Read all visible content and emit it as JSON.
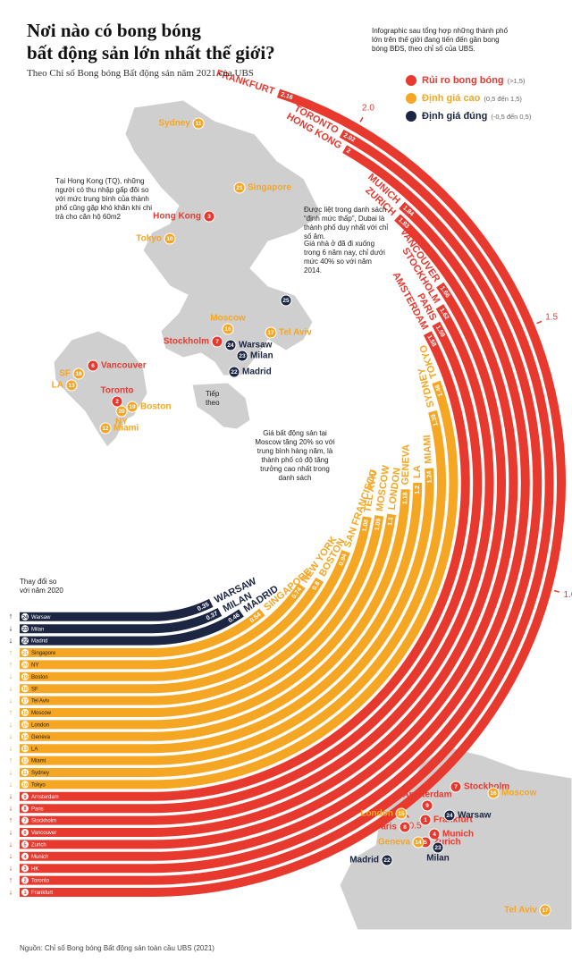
{
  "header": {
    "title": [
      "Nơi nào có bong bóng",
      "bất động sản lớn nhất thế giới?"
    ],
    "subtitle": "Theo Chỉ số Bong bóng Bất động sản năm 2021 của UBS",
    "intro": "Infographic sau tổng hợp những thành phố lớn trên thế giới đang tiến đến gần bong bóng BĐS, theo chỉ số của UBS."
  },
  "chart_data": {
    "type": "radial_bar",
    "legend": [
      {
        "name": "Rủi ro bong bóng",
        "range": "(>1,5)",
        "color": "#e8392f"
      },
      {
        "name": "Định giá cao",
        "range": "(0,5 đến 1,5)",
        "color": "#f5a623"
      },
      {
        "name": "Định giá đúng",
        "range": "(-0,5 đến 0,5)",
        "color": "#1c2541"
      }
    ],
    "categories": [
      "FRANKFURT",
      "TORONTO",
      "HONG KONG",
      "MUNICH",
      "ZURICH",
      "VANCOUVER",
      "STOCKHOLM",
      "PARIS",
      "AMSTERDAM",
      "TOKYO",
      "SYDNEY",
      "MIAMI",
      "LA",
      "GENEVA",
      "LONDON",
      "MOSCOW",
      "TEL AVIV",
      "SAN FRANCISCO",
      "BOSTON",
      "NEW YORK",
      "SINGAPORE",
      "MADRID",
      "MILAN",
      "WARSAW"
    ],
    "values": [
      2.16,
      2.02,
      2.0,
      1.84,
      1.83,
      1.66,
      1.62,
      1.59,
      1.58,
      1.46,
      1.39,
      1.24,
      1.2,
      1.18,
      1.1,
      1.09,
      1.08,
      0.94,
      0.8,
      0.74,
      0.54,
      0.46,
      0.37,
      0.35
    ],
    "groups": [
      0,
      0,
      0,
      0,
      0,
      0,
      0,
      0,
      0,
      1,
      1,
      1,
      1,
      1,
      1,
      1,
      1,
      1,
      1,
      1,
      1,
      2,
      2,
      2
    ],
    "ranks": [
      1,
      2,
      3,
      4,
      5,
      6,
      7,
      8,
      9,
      10,
      11,
      12,
      13,
      14,
      15,
      16,
      17,
      18,
      19,
      20,
      21,
      22,
      23,
      24
    ],
    "list_names": [
      "Frankfurt",
      "Toronto",
      "HK",
      "Munich",
      "Zurich",
      "Vancouver",
      "Stockholm",
      "Paris",
      "Amsterdam",
      "Tokyo",
      "Sydney",
      "Miami",
      "LA",
      "Geneva",
      "London",
      "Moscow",
      "Tel Aviv",
      "SF",
      "Boston",
      "NY",
      "Singapore",
      "Madrid",
      "Milan",
      "Warsaw"
    ],
    "trend": [
      "↓",
      "↑",
      "↓",
      "↓",
      "↓",
      "↓",
      "↑",
      "↓",
      "↓",
      "↓",
      "↓",
      "↑",
      "↓",
      "↓",
      "↓",
      "↑",
      "↓",
      "↓",
      "↓",
      "↑",
      "↑",
      "↓",
      "↓",
      "↑"
    ],
    "list_header": "Thay đổi so với năm 2020",
    "ylim": [
      0,
      2.4
    ],
    "yticks": [
      0.5,
      {
        "value": 1,
        "label": "1.0"
      },
      1.5,
      {
        "value": 2,
        "label": "2.0"
      }
    ]
  },
  "world_map": {
    "markers": [
      {
        "rank": "11",
        "label": "Sydney",
        "group": 1
      },
      {
        "rank": "21",
        "label": "Singapore",
        "group": 1
      },
      {
        "rank": "3",
        "label": "Hong Kong",
        "group": 0
      },
      {
        "rank": "10",
        "label": "Tokyo",
        "group": 1
      },
      {
        "rank": "16",
        "label": "Moscow",
        "group": 1
      },
      {
        "rank": "17",
        "label": "Tel Aviv",
        "group": 1
      },
      {
        "rank": "7",
        "label": "Stockholm",
        "group": 0
      },
      {
        "rank": "24",
        "label": "Warsaw",
        "group": 2
      },
      {
        "rank": "23",
        "label": "Milan",
        "group": 2
      },
      {
        "rank": "22",
        "label": "Madrid",
        "group": 2
      },
      {
        "rank": "25",
        "label": "",
        "group": 2
      },
      {
        "rank": "6",
        "label": "Vancouver",
        "group": 0
      },
      {
        "rank": "18",
        "label": "SF",
        "group": 1
      },
      {
        "rank": "13",
        "label": "LA",
        "group": 1
      },
      {
        "rank": "2",
        "label": "Toronto",
        "group": 0
      },
      {
        "rank": "20",
        "label": "NY",
        "group": 1
      },
      {
        "rank": "19",
        "label": "Boston",
        "group": 1
      },
      {
        "rank": "12",
        "label": "Miami",
        "group": 1
      }
    ],
    "notes": [
      "Tại Hong Kong (TQ), những người có thu nhập gấp đôi so với mức trung bình của thành phố cũng gặp khó khăn khi chi trả cho căn hộ 60m2",
      "Được liệt trong danh sách “định mức thấp”, Dubai là thành phố duy nhất với chỉ số âm.",
      "Giá nhà ở đã đi xuống trong 6 năm nay, chỉ dưới mức 40% so với năm 2014.",
      "Tiếp theo",
      "Giá bất động sản tại Moscow tăng 20% so với trung bình hàng năm, là thành phố có độ tăng trưởng cao nhất trong danh sách"
    ]
  },
  "europe_map": {
    "markers": [
      {
        "rank": "9",
        "label": "Amsterdam",
        "group": 0
      },
      {
        "rank": "7",
        "label": "Stockholm",
        "group": 0
      },
      {
        "rank": "16",
        "label": "Moscow",
        "group": 1
      },
      {
        "rank": "1",
        "label": "Frankfurt",
        "group": 0
      },
      {
        "rank": "24",
        "label": "Warsaw",
        "group": 2
      },
      {
        "rank": "15",
        "label": "London",
        "group": 1
      },
      {
        "rank": "8",
        "label": "Paris",
        "group": 0
      },
      {
        "rank": "4",
        "label": "Munich",
        "group": 0
      },
      {
        "rank": "5",
        "label": "Zurich",
        "group": 0
      },
      {
        "rank": "14",
        "label": "Geneva",
        "group": 1
      },
      {
        "rank": "22",
        "label": "Madrid",
        "group": 2
      },
      {
        "rank": "23",
        "label": "Milan",
        "group": 2
      },
      {
        "rank": "17",
        "label": "Tel Aviv",
        "group": 1
      }
    ]
  },
  "footer": {
    "source": "Nguồn: Chỉ số Bong bóng Bất động sản toàn cầu UBS (2021)"
  }
}
